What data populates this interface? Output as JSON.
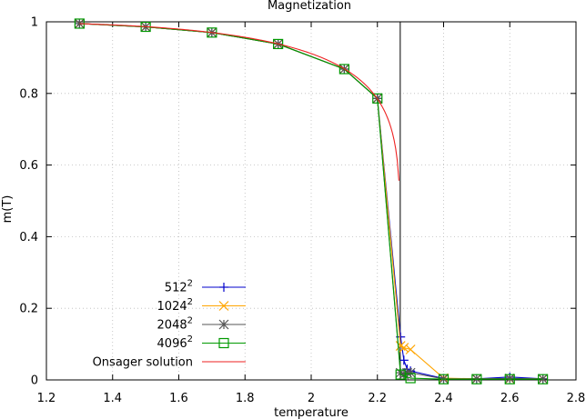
{
  "chart_data": {
    "type": "line",
    "title": "Magnetization",
    "xlabel": "temperature",
    "ylabel": "m(T)",
    "xlim": [
      1.2,
      2.8
    ],
    "ylim": [
      0,
      1
    ],
    "xticks": [
      "1.2",
      "1.4",
      "1.6",
      "1.8",
      "2",
      "2.2",
      "2.4",
      "2.6",
      "2.8"
    ],
    "yticks": [
      "0",
      "0.2",
      "0.4",
      "0.6",
      "0.8",
      "1"
    ],
    "grid": true,
    "legend_position": "bottom-left",
    "critical_line_x": 2.269,
    "series": [
      {
        "name": "512",
        "superscript": "2",
        "color": "#0000cc",
        "marker": "plus",
        "x": [
          1.3,
          1.5,
          1.7,
          1.9,
          2.1,
          2.2,
          2.27,
          2.28,
          2.29,
          2.3,
          2.4,
          2.5,
          2.6,
          2.7
        ],
        "y": [
          0.995,
          0.986,
          0.97,
          0.938,
          0.868,
          0.786,
          0.12,
          0.055,
          0.03,
          0.025,
          0.004,
          0.003,
          0.008,
          0.003
        ]
      },
      {
        "name": "1024",
        "superscript": "2",
        "color": "#ffa500",
        "marker": "cross",
        "x": [
          1.3,
          1.5,
          1.7,
          1.9,
          2.1,
          2.2,
          2.27,
          2.28,
          2.3,
          2.4,
          2.5,
          2.6,
          2.7
        ],
        "y": [
          0.995,
          0.986,
          0.97,
          0.938,
          0.868,
          0.786,
          0.095,
          0.09,
          0.085,
          0.005,
          0.003,
          0.003,
          0.003
        ]
      },
      {
        "name": "2048",
        "superscript": "2",
        "color": "#555555",
        "marker": "star",
        "x": [
          1.3,
          1.5,
          1.7,
          1.9,
          2.1,
          2.2,
          2.27,
          2.28,
          2.29,
          2.3,
          2.4,
          2.5,
          2.6,
          2.7
        ],
        "y": [
          0.995,
          0.986,
          0.97,
          0.938,
          0.868,
          0.786,
          0.02,
          0.015,
          0.02,
          0.02,
          0.003,
          0.003,
          0.004,
          0.003
        ]
      },
      {
        "name": "4096",
        "superscript": "2",
        "color": "#009900",
        "marker": "square",
        "x": [
          1.3,
          1.5,
          1.7,
          1.9,
          2.1,
          2.2,
          2.27,
          2.3,
          2.4,
          2.5,
          2.6,
          2.7
        ],
        "y": [
          0.995,
          0.986,
          0.97,
          0.938,
          0.868,
          0.786,
          0.015,
          0.005,
          0.002,
          0.002,
          0.002,
          0.002
        ]
      },
      {
        "name": "Onsager solution",
        "superscript": "",
        "color": "#ee2222",
        "marker": "none",
        "kind": "onsager",
        "x_range": [
          1.3,
          2.265
        ]
      }
    ]
  }
}
